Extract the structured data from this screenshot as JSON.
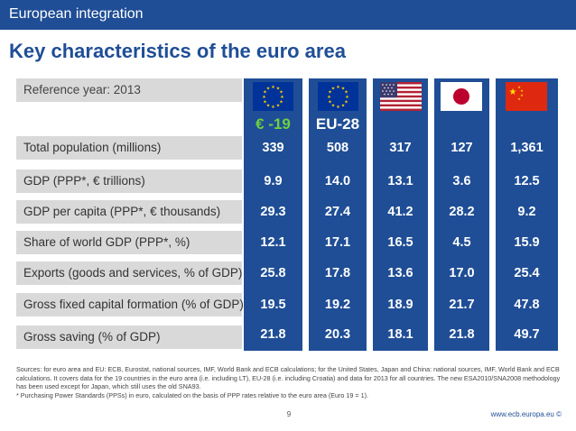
{
  "header": {
    "section": "European integration"
  },
  "title": "Key characteristics of the euro area",
  "reference": "Reference year: 2013",
  "columns": [
    {
      "flag": "eu-flag-icon",
      "label": "€ -19"
    },
    {
      "flag": "eu-flag-icon",
      "label": "EU-28"
    },
    {
      "flag": "us-flag-icon",
      "label": ""
    },
    {
      "flag": "japan-flag-icon",
      "label": ""
    },
    {
      "flag": "china-flag-icon",
      "label": ""
    }
  ],
  "rows": [
    {
      "label": "Total population (millions)",
      "values": [
        "339",
        "508",
        "317",
        "127",
        "1,361"
      ]
    },
    {
      "label": "GDP (PPP*, € trillions)",
      "values": [
        "9.9",
        "14.0",
        "13.1",
        "3.6",
        "12.5"
      ]
    },
    {
      "label": "GDP per capita (PPP*, € thousands)",
      "values": [
        "29.3",
        "27.4",
        "41.2",
        "28.2",
        "9.2"
      ]
    },
    {
      "label": "Share of world GDP (PPP*, %)",
      "values": [
        "12.1",
        "17.1",
        "16.5",
        "4.5",
        "15.9"
      ]
    },
    {
      "label": "Exports (goods and services, % of GDP)",
      "values": [
        "25.8",
        "17.8",
        "13.6",
        "17.0",
        "25.4"
      ]
    },
    {
      "label": "Gross fixed capital formation (% of GDP)",
      "values": [
        "19.5",
        "19.2",
        "18.9",
        "21.7",
        "47.8"
      ]
    },
    {
      "label": "Gross saving (% of GDP)",
      "values": [
        "21.8",
        "20.3",
        "18.1",
        "21.8",
        "49.7"
      ]
    }
  ],
  "footer": {
    "sources": "Sources: for euro area and EU: ECB, Eurostat, national sources, IMF, World Bank and ECB calculations; for the United States, Japan and China: national sources, IMF, World Bank and ECB calculations. It covers data for the 19 countries in the euro area (i.e. including LT), EU-28 (i.e. including Croatia) and data for 2013 for all countries. The new ESA2010/SNA2008 methodology has been used except for Japan, which still uses the old SNA93.",
    "footnote": "* Purchasing Power Standards (PPSs) in euro, calculated on the basis of PPP rates relative to the euro area (Euro 19 = 1).",
    "page": "9",
    "website": "www.ecb.europa.eu ©"
  },
  "colors": {
    "brand_blue": "#1f4e96",
    "euro_green": "#6fd13f",
    "label_grey": "#d9d9d9"
  }
}
